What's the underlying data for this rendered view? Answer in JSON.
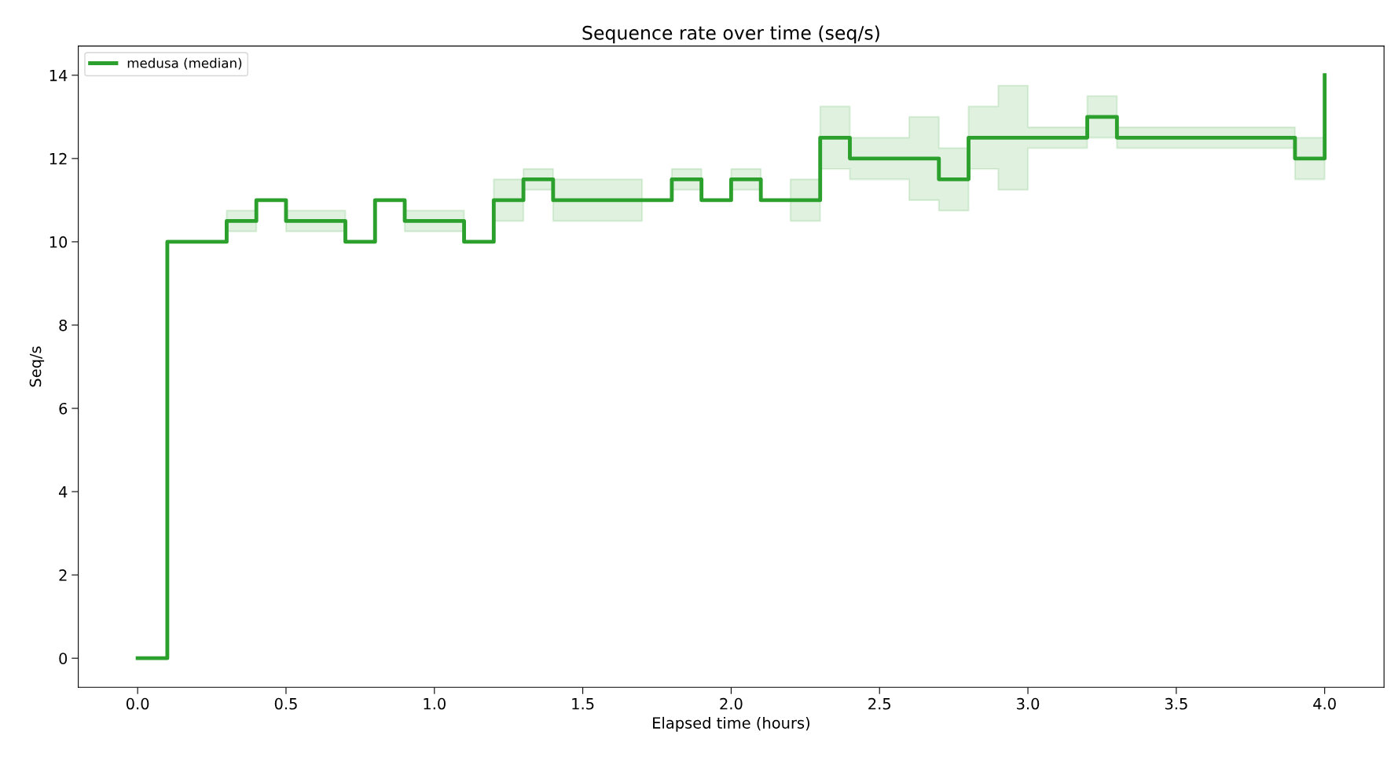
{
  "chart_data": {
    "type": "step",
    "title": "Sequence rate over time (seq/s)",
    "xlabel": "Elapsed time (hours)",
    "ylabel": "Seq/s",
    "x": [
      0.0,
      0.1,
      0.2,
      0.3,
      0.4,
      0.5,
      0.6,
      0.7,
      0.8,
      0.9,
      1.0,
      1.1,
      1.2,
      1.3,
      1.4,
      1.5,
      1.6,
      1.7,
      1.8,
      1.9,
      2.0,
      2.1,
      2.2,
      2.3,
      2.4,
      2.5,
      2.6,
      2.7,
      2.8,
      2.9,
      3.0,
      3.1,
      3.2,
      3.3,
      3.4,
      3.5,
      3.6,
      3.7,
      3.8,
      3.9,
      4.0
    ],
    "series": [
      {
        "name": "medusa (median)",
        "color": "#2ca02c",
        "values": [
          0,
          10,
          10,
          10.5,
          11,
          10.5,
          10.5,
          10,
          11,
          10.5,
          10.5,
          10,
          11,
          11.5,
          11,
          11,
          11,
          11,
          11.5,
          11,
          11.5,
          11,
          11,
          12.5,
          12,
          12,
          12,
          11.5,
          12.5,
          12.5,
          12.5,
          12.5,
          13,
          12.5,
          12.5,
          12.5,
          12.5,
          12.5,
          12.5,
          12,
          14
        ],
        "lower": [
          0,
          10,
          10,
          10.25,
          11,
          10.25,
          10.25,
          10,
          11,
          10.25,
          10.25,
          10,
          10.5,
          11.25,
          10.5,
          10.5,
          10.5,
          11,
          11.25,
          11,
          11.25,
          11,
          10.5,
          11.75,
          11.5,
          11.5,
          11,
          10.75,
          11.75,
          11.25,
          12.25,
          12.25,
          12.5,
          12.25,
          12.25,
          12.25,
          12.25,
          12.25,
          12.25,
          11.5,
          14
        ],
        "upper": [
          0,
          10,
          10,
          10.75,
          11,
          10.75,
          10.75,
          10,
          11,
          10.75,
          10.75,
          10,
          11.5,
          11.75,
          11.5,
          11.5,
          11.5,
          11,
          11.75,
          11,
          11.75,
          11,
          11.5,
          13.25,
          12.5,
          12.5,
          13,
          12.25,
          13.25,
          13.75,
          12.75,
          12.75,
          13.5,
          12.75,
          12.75,
          12.75,
          12.75,
          12.75,
          12.75,
          12.5,
          14
        ]
      }
    ],
    "xlim": [
      -0.2,
      4.2
    ],
    "ylim": [
      -0.7,
      14.7
    ],
    "xticks": [
      {
        "value": 0,
        "label": "0.0"
      },
      {
        "value": 0.5,
        "label": "0.5"
      },
      {
        "value": 1,
        "label": "1.0"
      },
      {
        "value": 1.5,
        "label": "1.5"
      },
      {
        "value": 2,
        "label": "2.0"
      },
      {
        "value": 2.5,
        "label": "2.5"
      },
      {
        "value": 3,
        "label": "3.0"
      },
      {
        "value": 3.5,
        "label": "3.5"
      },
      {
        "value": 4,
        "label": "4.0"
      }
    ],
    "yticks": [
      0,
      2,
      4,
      6,
      8,
      10,
      12,
      14
    ],
    "grid": false,
    "legend": "top left",
    "line_style": "solid",
    "marker": "none"
  }
}
